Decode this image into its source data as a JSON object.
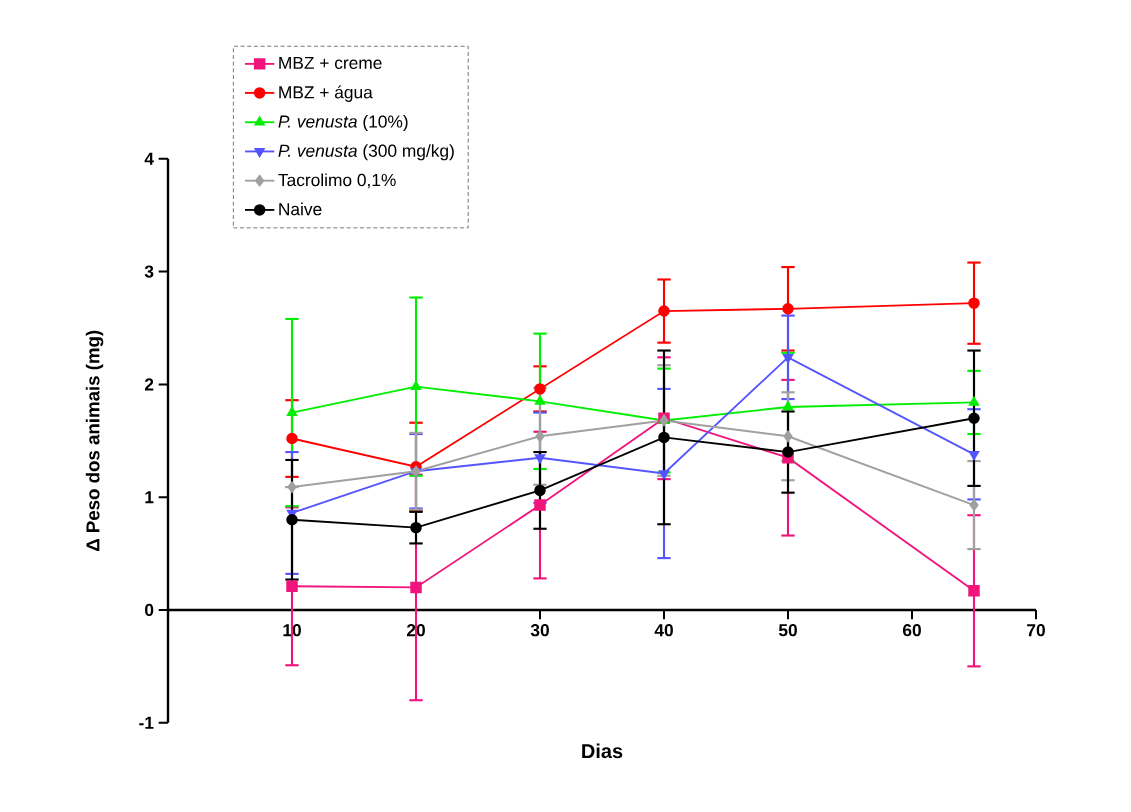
{
  "chart_data": {
    "type": "line",
    "xlabel": "Dias",
    "ylabel": "Δ Peso dos animais (mg)",
    "x": [
      10,
      20,
      30,
      40,
      50,
      65
    ],
    "xlim": [
      0,
      70
    ],
    "xticks": [
      10,
      20,
      30,
      40,
      50,
      60,
      70
    ],
    "ylim": [
      -1,
      4
    ],
    "yticks": [
      -1,
      0,
      1,
      2,
      3,
      4
    ],
    "grid": false,
    "legend": "top left",
    "line_style": "solid",
    "series": [
      {
        "name": "MBZ + creme",
        "color": "#f0147c",
        "marker": "square",
        "values": [
          0.21,
          0.2,
          0.93,
          1.7,
          1.35,
          0.17
        ],
        "errors": [
          0.7,
          1.0,
          0.65,
          0.54,
          0.69,
          0.67
        ]
      },
      {
        "name": "MBZ + água",
        "color": "#ff0000",
        "marker": "circle",
        "values": [
          1.52,
          1.27,
          1.96,
          2.65,
          2.67,
          2.72
        ],
        "errors": [
          0.34,
          0.39,
          0.2,
          0.28,
          0.37,
          0.36
        ]
      },
      {
        "name": "*P. venusta* (10%)",
        "color": "#00ee00",
        "marker": "triangle",
        "values": [
          1.75,
          1.98,
          1.85,
          1.68,
          1.8,
          1.84
        ],
        "errors": [
          0.83,
          0.79,
          0.6,
          0.46,
          0.48,
          0.28
        ]
      },
      {
        "name": "*P. venusta* (300 mg/kg)",
        "color": "#5555ff",
        "marker": "triangle-down",
        "values": [
          0.86,
          1.23,
          1.35,
          1.21,
          2.24,
          1.38
        ],
        "errors": [
          0.54,
          0.33,
          0.4,
          0.75,
          0.37,
          0.4
        ]
      },
      {
        "name": "Tacrolimo 0,1%",
        "color": "#a0a0a0",
        "marker": "diamond",
        "values": [
          1.09,
          1.23,
          1.54,
          1.68,
          1.54,
          0.93
        ],
        "errors": [
          null,
          0.34,
          0.43,
          0.49,
          0.39,
          0.39
        ]
      },
      {
        "name": "Naive",
        "color": "#000000",
        "marker": "circle",
        "values": [
          0.8,
          0.73,
          1.06,
          1.53,
          1.4,
          1.7
        ],
        "errors": [
          0.53,
          0.14,
          0.34,
          0.77,
          0.36,
          0.6
        ]
      }
    ]
  }
}
